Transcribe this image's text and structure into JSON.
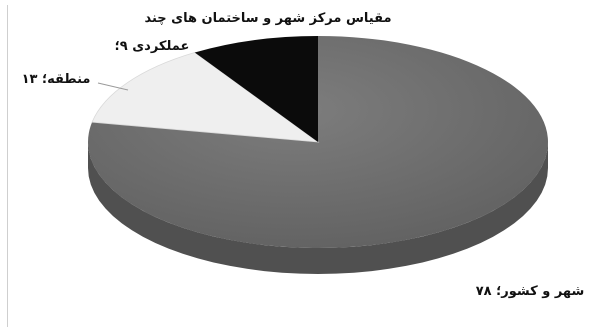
{
  "chart_data": {
    "type": "pie",
    "style": "3d",
    "slices": [
      {
        "label": "شهر و کشور",
        "value": 78,
        "display": "۷۸",
        "color": "#6f6f6f"
      },
      {
        "label": "منطقه",
        "value": 13,
        "display": "۱۳",
        "color": "#efefef"
      },
      {
        "label": "مقیاس مرکز شهر و ساختمان های چند عملکردی",
        "value": 9,
        "display": "۹",
        "color": "#0b0b0b"
      }
    ],
    "labels_text": {
      "city_country": "شهر و کشور؛ ۷۸",
      "region": "منطقه؛ ۱۳",
      "multi_line1": "مقیاس مرکز شهر و ساختمان های چند",
      "multi_line2": "عملکردی ۹؛"
    }
  }
}
